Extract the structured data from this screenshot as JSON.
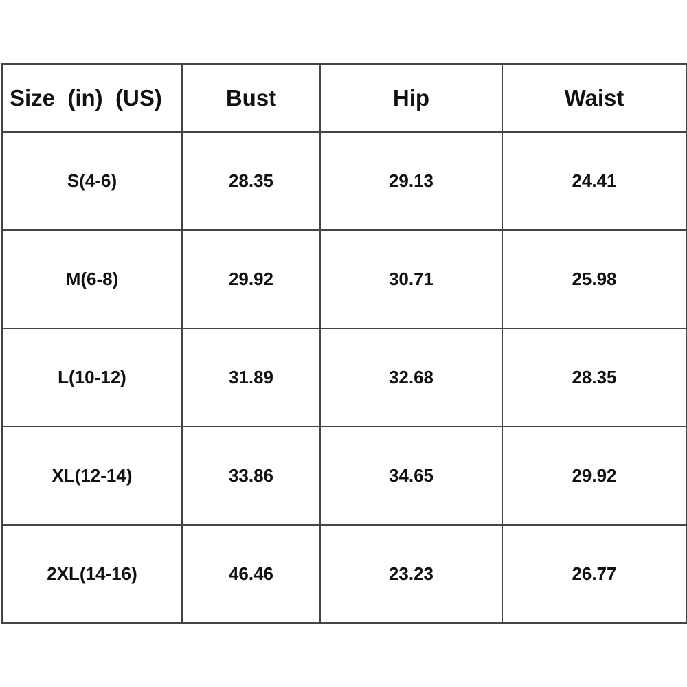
{
  "table": {
    "headers": [
      "Size  (in)  (US)",
      "Bust",
      "Hip",
      "Waist"
    ],
    "rows": [
      [
        "S(4-6)",
        "28.35",
        "29.13",
        "24.41"
      ],
      [
        "M(6-8)",
        "29.92",
        "30.71",
        "25.98"
      ],
      [
        "L(10-12)",
        "31.89",
        "32.68",
        "28.35"
      ],
      [
        "XL(12-14)",
        "33.86",
        "34.65",
        "29.92"
      ],
      [
        "2XL(14-16)",
        "46.46",
        "23.23",
        "26.77"
      ]
    ]
  }
}
